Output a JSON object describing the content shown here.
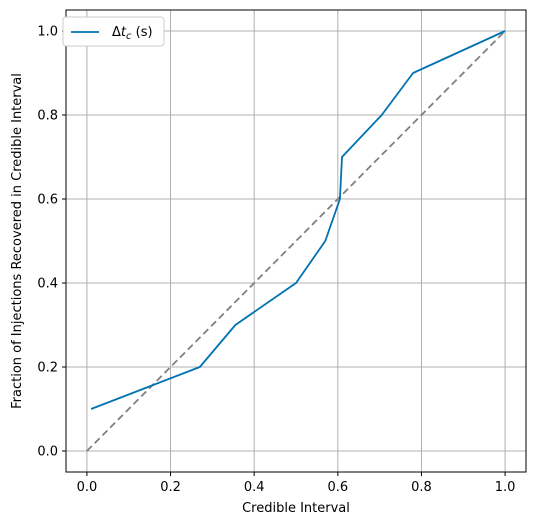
{
  "chart_data": {
    "type": "line",
    "xlabel": "Credible Interval",
    "ylabel": "Fraction of Injections Recovered in Credible Interval",
    "xlim": [
      -0.05,
      1.05
    ],
    "ylim": [
      -0.05,
      1.05
    ],
    "xticks": [
      "0.0",
      "0.2",
      "0.4",
      "0.6",
      "0.8",
      "1.0"
    ],
    "yticks": [
      "0.0",
      "0.2",
      "0.4",
      "0.6",
      "0.8",
      "1.0"
    ],
    "grid": true,
    "legend_position": "top-left",
    "series": [
      {
        "name": "Δt_c (s)",
        "color": "#0072b2",
        "x": [
          0.01,
          0.27,
          0.355,
          0.5,
          0.57,
          0.605,
          0.61,
          0.705,
          0.78,
          1.0
        ],
        "y": [
          0.1,
          0.2,
          0.3,
          0.4,
          0.5,
          0.6,
          0.7,
          0.8,
          0.9,
          1.0
        ]
      }
    ],
    "reference_line": {
      "x": [
        0.0,
        1.0
      ],
      "y": [
        0.0,
        1.0
      ],
      "color": "#808080",
      "style": "dashed"
    }
  }
}
